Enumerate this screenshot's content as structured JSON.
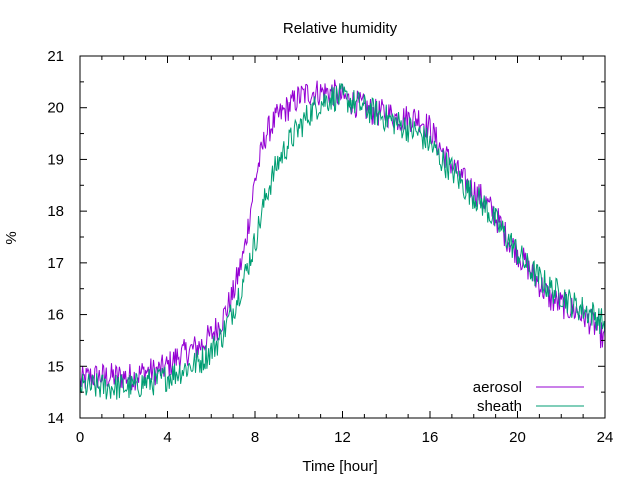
{
  "chart_data": {
    "type": "line",
    "title": "Relative humidity",
    "xlabel": "Time [hour]",
    "ylabel": "%",
    "xlim": [
      0,
      24
    ],
    "ylim": [
      14,
      21
    ],
    "x_ticks": [
      0,
      4,
      8,
      12,
      16,
      20,
      24
    ],
    "y_ticks": [
      14,
      15,
      16,
      17,
      18,
      19,
      20,
      21
    ],
    "x_minor_step": 1,
    "y_minor_step": 0.5,
    "grid": false,
    "legend_position": "bottom-right",
    "series": [
      {
        "name": "aerosol",
        "color": "#9400d3",
        "x": [
          0,
          0.5,
          1,
          1.5,
          2,
          2.5,
          3,
          3.5,
          4,
          4.5,
          5,
          5.5,
          6,
          6.5,
          7,
          7.5,
          8,
          8.5,
          9,
          9.5,
          10,
          10.5,
          11,
          11.5,
          12,
          12.5,
          13,
          13.5,
          14,
          14.5,
          15,
          15.5,
          16,
          16.5,
          17,
          17.5,
          18,
          18.5,
          19,
          19.5,
          20,
          20.5,
          21,
          21.5,
          22,
          22.5,
          23,
          23.5,
          24
        ],
        "y": [
          14.7,
          14.8,
          14.8,
          14.8,
          14.8,
          14.8,
          14.9,
          14.9,
          15.0,
          15.2,
          15.3,
          15.4,
          15.6,
          15.9,
          16.4,
          17.2,
          18.6,
          19.5,
          19.8,
          20.0,
          20.2,
          20.3,
          20.3,
          20.3,
          20.2,
          20.1,
          20.0,
          19.9,
          19.9,
          19.8,
          19.8,
          19.8,
          19.6,
          19.2,
          18.9,
          18.6,
          18.4,
          18.2,
          17.9,
          17.5,
          17.2,
          16.9,
          16.6,
          16.3,
          16.2,
          16.1,
          16.0,
          15.8,
          15.5
        ]
      },
      {
        "name": "sheath",
        "color": "#009e73",
        "x": [
          0,
          0.5,
          1,
          1.5,
          2,
          2.5,
          3,
          3.5,
          4,
          4.5,
          5,
          5.5,
          6,
          6.5,
          7,
          7.5,
          8,
          8.5,
          9,
          9.5,
          10,
          10.5,
          11,
          11.5,
          12,
          12.5,
          13,
          13.5,
          14,
          14.5,
          15,
          15.5,
          16,
          16.5,
          17,
          17.5,
          18,
          18.5,
          19,
          19.5,
          20,
          20.5,
          21,
          21.5,
          22,
          22.5,
          23,
          23.5,
          24
        ],
        "y": [
          14.6,
          14.6,
          14.6,
          14.6,
          14.6,
          14.6,
          14.7,
          14.7,
          14.8,
          14.9,
          15.0,
          15.1,
          15.3,
          15.6,
          16.1,
          16.7,
          17.4,
          18.3,
          18.9,
          19.3,
          19.6,
          19.9,
          20.1,
          20.2,
          20.2,
          20.1,
          20.0,
          19.9,
          19.8,
          19.7,
          19.6,
          19.5,
          19.3,
          19.0,
          18.8,
          18.5,
          18.3,
          18.1,
          17.8,
          17.5,
          17.2,
          16.9,
          16.7,
          16.5,
          16.4,
          16.2,
          16.1,
          16.0,
          15.8
        ]
      }
    ]
  }
}
